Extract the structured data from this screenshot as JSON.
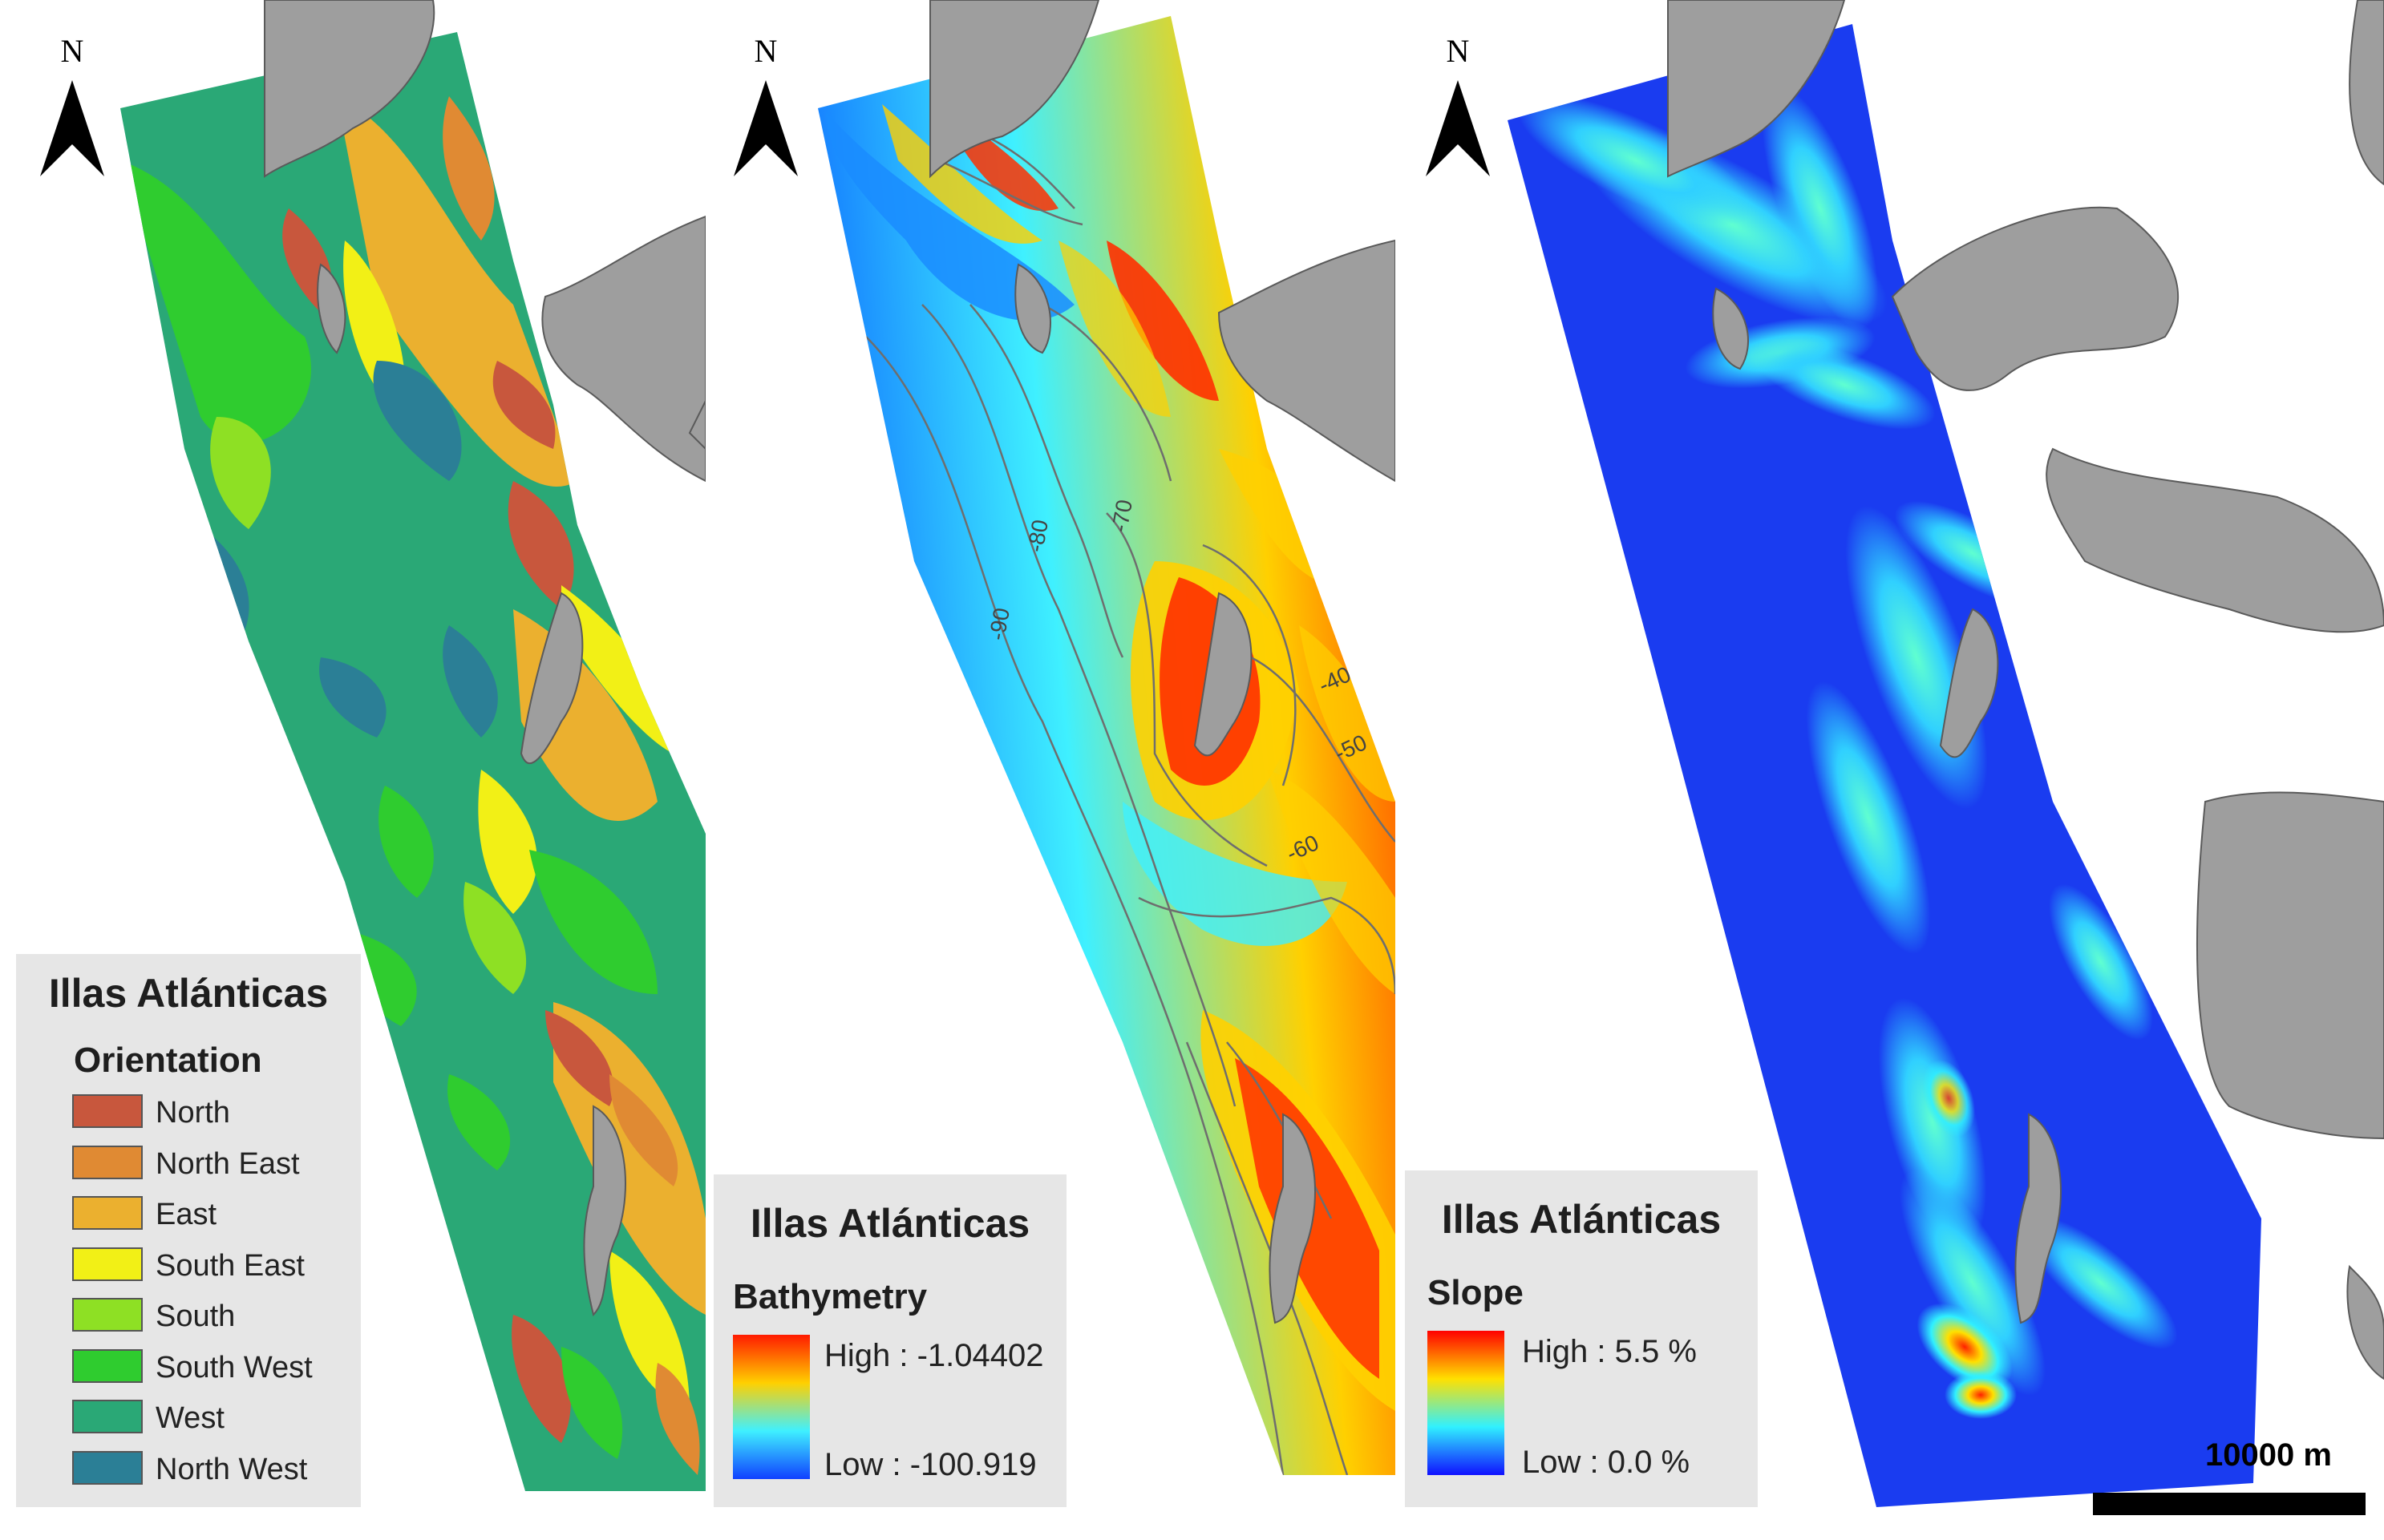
{
  "panels": [
    {
      "id": "orientation",
      "legend": {
        "title": "Illas Atlánticas",
        "subtitle": "Orientation",
        "classes": [
          {
            "label": "North",
            "color": "#c8573d"
          },
          {
            "label": "North East",
            "color": "#e08a33"
          },
          {
            "label": "East",
            "color": "#ebb02f"
          },
          {
            "label": "South East",
            "color": "#f2f016"
          },
          {
            "label": "South",
            "color": "#8ee024"
          },
          {
            "label": "South West",
            "color": "#2fcc2f"
          },
          {
            "label": "West",
            "color": "#2aa876"
          },
          {
            "label": "North West",
            "color": "#2b7f96"
          }
        ]
      },
      "north_label": "N"
    },
    {
      "id": "bathymetry",
      "legend": {
        "title": "Illas Atlánticas",
        "subtitle": "Bathymetry",
        "high_label": "High : -1.04402",
        "low_label": "Low : -100.919",
        "ramp_colors": [
          "#ff1a00",
          "#ffd000",
          "#3ff0ff",
          "#1040ff"
        ]
      },
      "north_label": "N",
      "contour_labels": [
        "-80",
        "-70",
        "-90",
        "-40",
        "-50",
        "-60"
      ]
    },
    {
      "id": "slope",
      "legend": {
        "title": "Illas Atlánticas",
        "subtitle": "Slope",
        "high_label": "High : 5.5 %",
        "low_label": "Low : 0.0 %",
        "ramp_colors": [
          "#ff0000",
          "#ffe000",
          "#30f0ff",
          "#1010ff"
        ]
      },
      "north_label": "N",
      "scale_bar": {
        "label": "10000 m"
      }
    }
  ],
  "colors": {
    "land": "#9e9e9e",
    "land_stroke": "#5a5a5a",
    "legend_bg": "#e6e6e6"
  }
}
